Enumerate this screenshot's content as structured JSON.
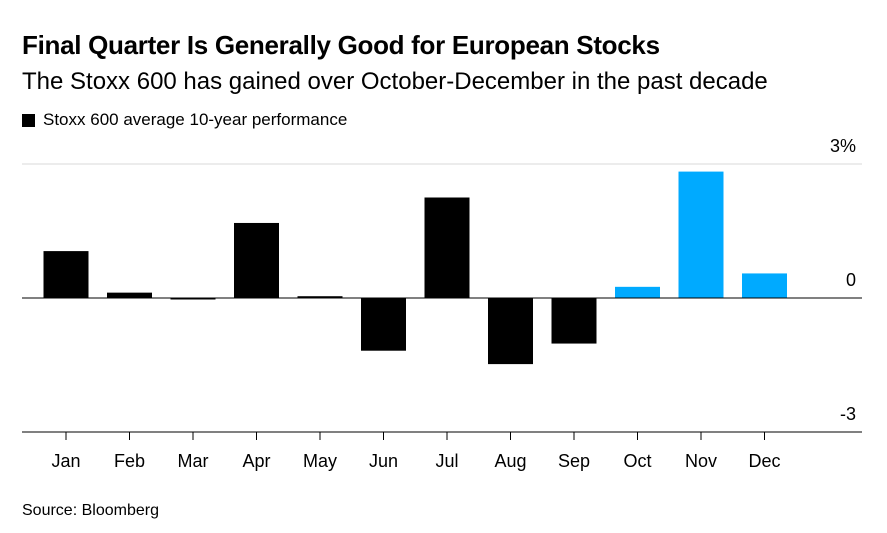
{
  "chart_data": {
    "type": "bar",
    "title": "Final Quarter Is Generally Good for European Stocks",
    "subtitle": "The Stoxx 600 has gained over October-December in the past decade",
    "legend": "Stoxx 600 average 10-year performance",
    "categories": [
      "Jan",
      "Feb",
      "Mar",
      "Apr",
      "May",
      "Jun",
      "Jul",
      "Aug",
      "Sep",
      "Oct",
      "Nov",
      "Dec"
    ],
    "values": [
      1.05,
      0.12,
      -0.03,
      1.68,
      0.04,
      -1.18,
      2.25,
      -1.48,
      -1.02,
      0.25,
      2.83,
      0.55
    ],
    "highlight_categories": [
      "Oct",
      "Nov",
      "Dec"
    ],
    "ylim": [
      -3,
      3
    ],
    "ytick_labels": [
      {
        "value": 3,
        "label": "3%"
      },
      {
        "value": 0,
        "label": "0"
      },
      {
        "value": -3,
        "label": "-3"
      }
    ],
    "xlabel": "",
    "ylabel": "",
    "legend_position": "top-left"
  },
  "colors": {
    "base": "#000000",
    "highlight": "#00aaff",
    "axis": "#000000",
    "grid": "#d9d9d9"
  },
  "source": "Source: Bloomberg"
}
